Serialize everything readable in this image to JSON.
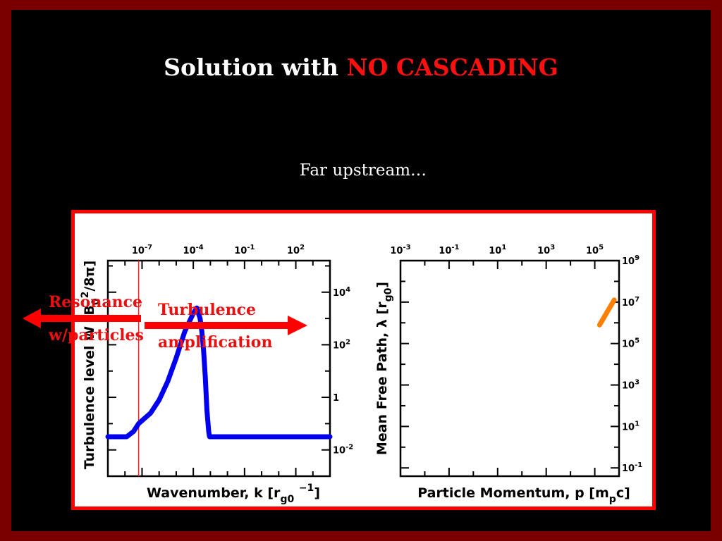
{
  "slide": {
    "title_main": "Solution with ",
    "title_highlight": "NO CASCADING",
    "subtitle": "Far upstream…"
  },
  "annotations": {
    "resonance_line1": "Resonance",
    "resonance_line2": "w/particles",
    "turbulence_line1": "Turbulence",
    "turbulence_line2": "amplification"
  },
  "colors": {
    "slide_border": "#7a0000",
    "panel_border": "#ff0000",
    "accent_red": "#e81010",
    "turbulence_curve": "#0000ee",
    "mfp_curve": "#ff7f00"
  },
  "chart_data": [
    {
      "type": "line",
      "xlabel": "Wavenumber, k [r_g0^-1]",
      "ylabel": "Turbulence level W [B_0^2/8π]",
      "x_scale": "log",
      "y_scale": "log",
      "xlim_log10": [
        -9,
        4
      ],
      "ylim_log10": [
        -3,
        5.2
      ],
      "x_tick_labels": [
        {
          "exp": "-7",
          "log10": -7
        },
        {
          "exp": "-4",
          "log10": -4
        },
        {
          "exp": "-1",
          "log10": -1
        },
        {
          "exp": "2",
          "log10": 2
        }
      ],
      "y_tick_labels": [
        {
          "base": "10",
          "exp": "4",
          "log10": 4
        },
        {
          "base": "10",
          "exp": "2",
          "log10": 2
        },
        {
          "base": "1",
          "exp": "",
          "log10": 0
        },
        {
          "base": "10",
          "exp": "-2",
          "log10": -2
        }
      ],
      "resonance_k_log10": -7.2,
      "series": [
        {
          "x_log10": [
            -9,
            -7.9,
            -7.5,
            -7.2,
            -6.5,
            -6.0,
            -5.5,
            -5.0,
            -4.5,
            -4.0,
            -3.8,
            -3.6,
            -3.5,
            -3.4,
            -3.3,
            -3.2,
            -3.1,
            -3.05,
            -2.95,
            -1,
            2,
            4
          ],
          "y_log10": [
            -1.5,
            -1.5,
            -1.3,
            -1.0,
            -0.6,
            -0.1,
            0.6,
            1.5,
            2.5,
            3.2,
            3.4,
            3.0,
            2.5,
            1.8,
            0.8,
            -0.5,
            -1.3,
            -1.5,
            -1.5,
            -1.5,
            -1.5,
            -1.5
          ]
        }
      ]
    },
    {
      "type": "line",
      "xlabel": "Particle Momentum, p [m_p c]",
      "ylabel": "Mean Free Path, λ [r_g0]",
      "x_scale": "log",
      "y_scale": "log",
      "xlim_log10": [
        -3,
        6
      ],
      "ylim_log10": [
        -1.4,
        9
      ],
      "x_tick_labels": [
        {
          "exp": "-3",
          "log10": -3
        },
        {
          "exp": "-1",
          "log10": -1
        },
        {
          "exp": "1",
          "log10": 1
        },
        {
          "exp": "3",
          "log10": 3
        },
        {
          "exp": "5",
          "log10": 5
        }
      ],
      "y_tick_labels": [
        {
          "exp": "9",
          "log10": 9
        },
        {
          "exp": "7",
          "log10": 7
        },
        {
          "exp": "5",
          "log10": 5
        },
        {
          "exp": "3",
          "log10": 3
        },
        {
          "exp": "1",
          "log10": 1
        },
        {
          "exp": "-1",
          "log10": -1
        }
      ],
      "series": [
        {
          "x_log10": [
            5.2,
            5.8
          ],
          "y_log10": [
            5.9,
            7.1
          ]
        }
      ]
    }
  ]
}
